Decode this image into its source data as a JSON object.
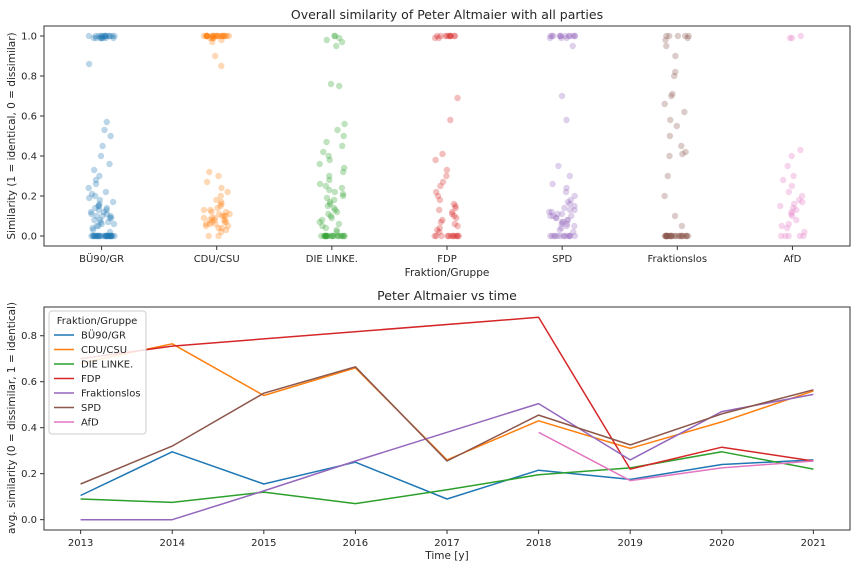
{
  "chart_data": [
    {
      "type": "scatter",
      "title": "Overall similarity of Peter Altmaier with all parties",
      "xlabel": "Fraktion/Gruppe",
      "ylabel": "Similarity (1 = identical, 0 = dissimilar)",
      "ylim": [
        -0.05,
        1.05
      ],
      "yticks": [
        0.0,
        0.2,
        0.4,
        0.6,
        0.8,
        1.0
      ],
      "yticklabels": [
        "0.0",
        "0.2",
        "0.4",
        "0.6",
        "0.8",
        "1.0"
      ],
      "categories": [
        "BÜ90/GR",
        "CDU/CSU",
        "DIE LINKE.",
        "FDP",
        "SPD",
        "Fraktionslos",
        "AfD"
      ],
      "colors": [
        "#1f77b4",
        "#ff7f0e",
        "#2ca02c",
        "#d62728",
        "#9467bd",
        "#8c564b",
        "#e377c2"
      ],
      "grid": false,
      "points_per_category": [
        [
          0,
          0,
          0,
          0,
          0,
          0,
          0,
          0,
          0,
          0,
          0,
          0,
          0,
          0,
          0,
          0,
          0,
          0,
          0,
          0,
          0,
          0,
          0,
          0,
          0,
          0,
          0,
          0,
          0,
          0,
          0.02,
          0.03,
          0.04,
          0.05,
          0.05,
          0.06,
          0.06,
          0.07,
          0.07,
          0.08,
          0.08,
          0.09,
          0.09,
          0.1,
          0.1,
          0.1,
          0.11,
          0.11,
          0.12,
          0.12,
          0.13,
          0.13,
          0.14,
          0.14,
          0.15,
          0.15,
          0.16,
          0.17,
          0.18,
          0.19,
          0.2,
          0.21,
          0.22,
          0.24,
          0.26,
          0.28,
          0.3,
          0.33,
          0.36,
          0.4,
          0.45,
          0.5,
          0.53,
          0.57,
          0.86,
          0.99,
          0.99,
          0.99,
          0.99,
          0.99,
          0.99,
          0.99,
          0.99,
          1,
          1,
          1,
          1,
          1,
          1,
          1,
          1,
          1,
          1,
          1,
          1,
          1
        ],
        [
          0,
          0,
          0.02,
          0.03,
          0.04,
          0.04,
          0.05,
          0.05,
          0.06,
          0.06,
          0.06,
          0.07,
          0.07,
          0.07,
          0.08,
          0.08,
          0.08,
          0.09,
          0.09,
          0.09,
          0.1,
          0.1,
          0.1,
          0.11,
          0.11,
          0.12,
          0.12,
          0.13,
          0.13,
          0.14,
          0.15,
          0.16,
          0.17,
          0.18,
          0.2,
          0.22,
          0.24,
          0.27,
          0.3,
          0.32,
          0.85,
          0.9,
          0.97,
          0.98,
          0.99,
          0.99,
          0.99,
          0.99,
          1,
          1,
          1,
          1,
          1,
          1,
          1,
          1,
          1,
          1,
          1,
          1,
          1,
          1,
          1,
          1,
          1,
          1,
          1,
          1,
          1,
          1,
          1,
          1
        ],
        [
          0,
          0,
          0,
          0,
          0,
          0,
          0,
          0,
          0,
          0,
          0,
          0,
          0,
          0,
          0,
          0,
          0,
          0,
          0,
          0,
          0.02,
          0.03,
          0.04,
          0.05,
          0.06,
          0.07,
          0.08,
          0.09,
          0.1,
          0.11,
          0.12,
          0.13,
          0.14,
          0.15,
          0.16,
          0.17,
          0.18,
          0.19,
          0.2,
          0.21,
          0.22,
          0.23,
          0.24,
          0.25,
          0.26,
          0.28,
          0.3,
          0.32,
          0.34,
          0.36,
          0.38,
          0.4,
          0.42,
          0.45,
          0.47,
          0.5,
          0.53,
          0.56,
          0.75,
          0.76,
          0.95,
          0.97,
          0.98,
          0.99,
          1,
          1
        ],
        [
          0,
          0,
          0,
          0,
          0,
          0,
          0,
          0,
          0,
          0,
          0,
          0,
          0.02,
          0.03,
          0.04,
          0.05,
          0.06,
          0.07,
          0.08,
          0.09,
          0.1,
          0.11,
          0.12,
          0.13,
          0.14,
          0.15,
          0.16,
          0.18,
          0.2,
          0.22,
          0.25,
          0.27,
          0.3,
          0.33,
          0.38,
          0.41,
          0.58,
          0.69,
          0.99,
          0.99,
          1,
          1,
          1,
          1,
          1,
          1,
          1,
          1,
          1,
          1
        ],
        [
          0,
          0,
          0,
          0,
          0,
          0,
          0,
          0,
          0,
          0,
          0,
          0,
          0,
          0.02,
          0.03,
          0.04,
          0.05,
          0.05,
          0.06,
          0.06,
          0.07,
          0.07,
          0.08,
          0.08,
          0.09,
          0.09,
          0.1,
          0.1,
          0.1,
          0.11,
          0.11,
          0.12,
          0.12,
          0.13,
          0.13,
          0.14,
          0.15,
          0.16,
          0.17,
          0.18,
          0.2,
          0.22,
          0.24,
          0.26,
          0.3,
          0.35,
          0.58,
          0.7,
          0.95,
          0.99,
          0.99,
          0.99,
          1,
          1,
          1,
          1,
          1,
          1,
          1,
          1,
          1,
          1,
          1,
          1
        ],
        [
          0,
          0,
          0,
          0,
          0,
          0,
          0,
          0,
          0,
          0,
          0,
          0,
          0,
          0,
          0,
          0,
          0,
          0,
          0,
          0,
          0,
          0,
          0,
          0,
          0,
          0,
          0,
          0,
          0.05,
          0.1,
          0.2,
          0.3,
          0.4,
          0.41,
          0.42,
          0.45,
          0.5,
          0.55,
          0.58,
          0.62,
          0.66,
          0.7,
          0.71,
          0.8,
          0.82,
          0.9,
          0.95,
          0.98,
          0.99,
          1,
          1,
          1,
          1,
          1
        ],
        [
          0,
          0,
          0,
          0,
          0,
          0.02,
          0.04,
          0.05,
          0.06,
          0.08,
          0.1,
          0.11,
          0.12,
          0.13,
          0.14,
          0.15,
          0.16,
          0.17,
          0.18,
          0.2,
          0.22,
          0.25,
          0.28,
          0.3,
          0.35,
          0.4,
          0.43,
          0.99,
          0.99,
          1
        ]
      ]
    },
    {
      "type": "line",
      "title": "Peter Altmaier vs time",
      "xlabel": "Time [y]",
      "ylabel": "avg. similarity (0 = dissimilar, 1 = identical)",
      "x": [
        2013,
        2014,
        2015,
        2016,
        2017,
        2018,
        2019,
        2020,
        2021
      ],
      "xlim": [
        2012.6,
        2021.4
      ],
      "ylim": [
        -0.045,
        0.925
      ],
      "yticks": [
        0.0,
        0.2,
        0.4,
        0.6,
        0.8
      ],
      "yticklabels": [
        "0.0",
        "0.2",
        "0.4",
        "0.6",
        "0.8"
      ],
      "grid": false,
      "legend": {
        "title": "Fraktion/Gruppe",
        "placement": "upper-left"
      },
      "series": [
        {
          "name": "BÜ90/GR",
          "color": "#1f77b4",
          "values": [
            0.105,
            0.295,
            0.155,
            0.25,
            0.09,
            0.215,
            0.175,
            0.24,
            0.26
          ]
        },
        {
          "name": "CDU/CSU",
          "color": "#ff7f0e",
          "values": [
            0.68,
            0.765,
            0.54,
            0.66,
            0.26,
            0.43,
            0.31,
            0.425,
            0.56
          ]
        },
        {
          "name": "DIE LINKE.",
          "color": "#2ca02c",
          "values": [
            0.09,
            0.075,
            0.12,
            0.07,
            0.13,
            0.195,
            0.225,
            0.295,
            0.22
          ]
        },
        {
          "name": "FDP",
          "color": "#d62728",
          "values": [
            0.7,
            0.755,
            null,
            null,
            null,
            0.88,
            0.22,
            0.315,
            0.255
          ]
        },
        {
          "name": "Fraktionslos",
          "color": "#9467bd",
          "values": [
            0.0,
            0.0,
            0.125,
            0.255,
            0.38,
            0.505,
            0.26,
            0.47,
            0.545
          ]
        },
        {
          "name": "SPD",
          "color": "#8c564b",
          "values": [
            0.155,
            0.32,
            0.55,
            0.665,
            0.255,
            0.455,
            0.325,
            0.46,
            0.565
          ]
        },
        {
          "name": "AfD",
          "color": "#e377c2",
          "values": [
            null,
            null,
            null,
            null,
            null,
            0.38,
            0.17,
            0.225,
            0.255
          ]
        }
      ]
    }
  ]
}
